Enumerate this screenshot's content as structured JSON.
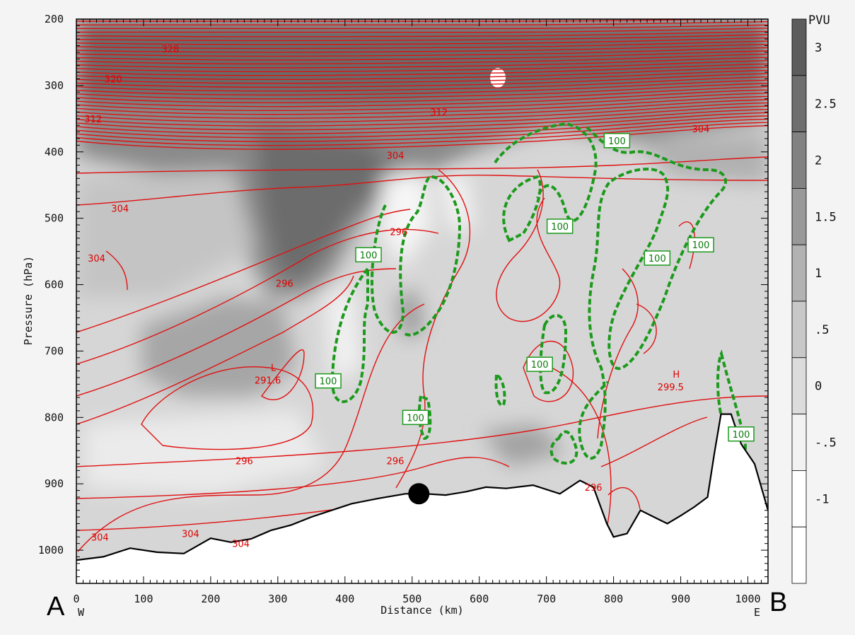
{
  "chart_data": {
    "type": "heatmap",
    "title": "",
    "xlabel": "Distance (km)",
    "ylabel": "Pressure (hPa)",
    "xlim": [
      0,
      1030
    ],
    "ylim": [
      1050,
      200
    ],
    "x_ticks": [
      "0",
      "100",
      "200",
      "300",
      "400",
      "500",
      "600",
      "700",
      "800",
      "900",
      "1000"
    ],
    "y_ticks": [
      "200",
      "300",
      "400",
      "500",
      "600",
      "700",
      "800",
      "900",
      "1000"
    ],
    "x_ends": {
      "left": "W",
      "right": "E"
    },
    "cross_section_ends": {
      "left": "A",
      "right": "B"
    },
    "colorbar": {
      "title": "PVU",
      "levels": [
        "3",
        "2.5",
        "2",
        "1.5",
        "1",
        ".5",
        "0",
        "-.5",
        "-1"
      ]
    },
    "theta_contour_labels": [
      {
        "text": "328",
        "x": 140,
        "p": 245
      },
      {
        "text": "320",
        "x": 55,
        "p": 290
      },
      {
        "text": "312",
        "x": 25,
        "p": 350
      },
      {
        "text": "312",
        "x": 540,
        "p": 340
      },
      {
        "text": "304",
        "x": 475,
        "p": 405
      },
      {
        "text": "304",
        "x": 65,
        "p": 485
      },
      {
        "text": "304",
        "x": 30,
        "p": 560
      },
      {
        "text": "304",
        "x": 930,
        "p": 365
      },
      {
        "text": "296",
        "x": 480,
        "p": 520
      },
      {
        "text": "296",
        "x": 310,
        "p": 598
      },
      {
        "text": "296",
        "x": 250,
        "p": 865
      },
      {
        "text": "296",
        "x": 475,
        "p": 865
      },
      {
        "text": "296",
        "x": 770,
        "p": 905
      },
      {
        "text": "304",
        "x": 35,
        "p": 980
      },
      {
        "text": "304",
        "x": 170,
        "p": 975
      },
      {
        "text": "304",
        "x": 245,
        "p": 990
      }
    ],
    "extrema": [
      {
        "symbol": "L",
        "value": "291.6",
        "x": 285,
        "p": 745
      },
      {
        "symbol": "H",
        "value": "299.5",
        "x": 885,
        "p": 755
      }
    ],
    "green_contour_labels": [
      {
        "text": "100",
        "x": 435,
        "p": 555
      },
      {
        "text": "100",
        "x": 375,
        "p": 745
      },
      {
        "text": "100",
        "x": 505,
        "p": 800
      },
      {
        "text": "100",
        "x": 720,
        "p": 512
      },
      {
        "text": "100",
        "x": 805,
        "p": 383
      },
      {
        "text": "100",
        "x": 690,
        "p": 720
      },
      {
        "text": "100",
        "x": 865,
        "p": 560
      },
      {
        "text": "100",
        "x": 930,
        "p": 540
      },
      {
        "text": "100",
        "x": 990,
        "p": 825
      }
    ],
    "marker": {
      "x": 510,
      "p": 915
    },
    "terrain": [
      [
        0,
        1015
      ],
      [
        40,
        1010
      ],
      [
        80,
        997
      ],
      [
        120,
        1003
      ],
      [
        160,
        1005
      ],
      [
        200,
        982
      ],
      [
        230,
        988
      ],
      [
        260,
        983
      ],
      [
        290,
        970
      ],
      [
        320,
        962
      ],
      [
        350,
        950
      ],
      [
        380,
        940
      ],
      [
        410,
        930
      ],
      [
        450,
        922
      ],
      [
        490,
        915
      ],
      [
        520,
        915
      ],
      [
        550,
        917
      ],
      [
        580,
        912
      ],
      [
        610,
        905
      ],
      [
        640,
        907
      ],
      [
        680,
        902
      ],
      [
        720,
        915
      ],
      [
        750,
        895
      ],
      [
        770,
        905
      ],
      [
        790,
        960
      ],
      [
        800,
        980
      ],
      [
        820,
        975
      ],
      [
        840,
        940
      ],
      [
        860,
        950
      ],
      [
        880,
        960
      ],
      [
        900,
        948
      ],
      [
        920,
        935
      ],
      [
        940,
        920
      ],
      [
        950,
        855
      ],
      [
        960,
        795
      ],
      [
        975,
        795
      ],
      [
        990,
        840
      ],
      [
        1010,
        870
      ],
      [
        1030,
        940
      ]
    ]
  }
}
